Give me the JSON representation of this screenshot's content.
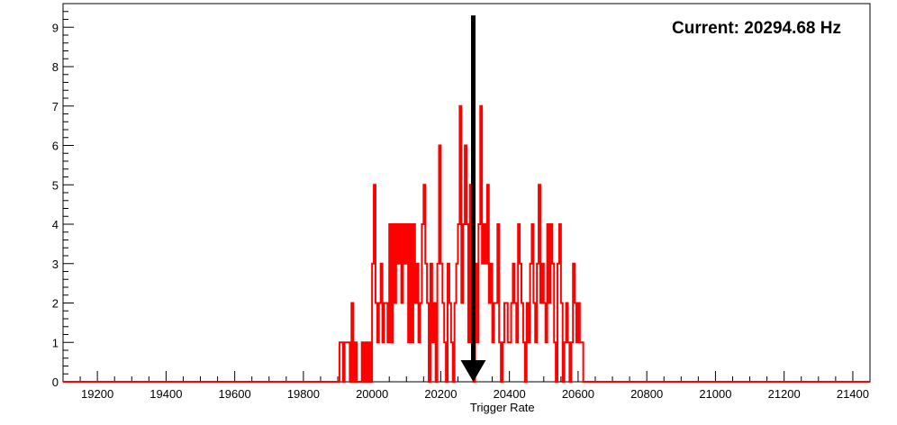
{
  "chart_data": {
    "type": "histogram",
    "title": "",
    "xlabel": "Trigger Rate",
    "ylabel": "",
    "xlim": [
      19100,
      21450
    ],
    "ylim": [
      0,
      9.6
    ],
    "x_ticks": [
      19200,
      19400,
      19600,
      19800,
      20000,
      20200,
      20400,
      20600,
      20800,
      21000,
      21200,
      21400
    ],
    "y_ticks": [
      0,
      1,
      2,
      3,
      4,
      5,
      6,
      7,
      8,
      9
    ],
    "bin_width": 5,
    "series": [
      {
        "color": "#ff0000",
        "bins": [
          [
            19100,
            0
          ],
          [
            19905,
            1
          ],
          [
            19910,
            1
          ],
          [
            19915,
            0
          ],
          [
            19920,
            1
          ],
          [
            19925,
            1
          ],
          [
            19930,
            1
          ],
          [
            19935,
            0
          ],
          [
            19940,
            2
          ],
          [
            19945,
            0
          ],
          [
            19950,
            1
          ],
          [
            19955,
            0
          ],
          [
            19970,
            1
          ],
          [
            19975,
            0
          ],
          [
            19980,
            1
          ],
          [
            19985,
            0
          ],
          [
            19990,
            1
          ],
          [
            19995,
            0
          ],
          [
            20000,
            3
          ],
          [
            20005,
            5
          ],
          [
            20010,
            2
          ],
          [
            20015,
            1
          ],
          [
            20020,
            2
          ],
          [
            20025,
            3
          ],
          [
            20030,
            1
          ],
          [
            20035,
            2
          ],
          [
            20040,
            2
          ],
          [
            20045,
            1
          ],
          [
            20050,
            4
          ],
          [
            20055,
            1
          ],
          [
            20060,
            4
          ],
          [
            20065,
            2
          ],
          [
            20070,
            4
          ],
          [
            20075,
            3
          ],
          [
            20080,
            4
          ],
          [
            20085,
            2
          ],
          [
            20090,
            4
          ],
          [
            20095,
            3
          ],
          [
            20100,
            4
          ],
          [
            20105,
            1
          ],
          [
            20110,
            4
          ],
          [
            20115,
            1
          ],
          [
            20120,
            4
          ],
          [
            20125,
            2
          ],
          [
            20130,
            3
          ],
          [
            20135,
            1
          ],
          [
            20140,
            2
          ],
          [
            20145,
            4
          ],
          [
            20150,
            5
          ],
          [
            20155,
            3
          ],
          [
            20160,
            2
          ],
          [
            20165,
            0
          ],
          [
            20170,
            3
          ],
          [
            20175,
            1
          ],
          [
            20180,
            2
          ],
          [
            20185,
            0
          ],
          [
            20190,
            3
          ],
          [
            20195,
            6
          ],
          [
            20200,
            3
          ],
          [
            20205,
            2
          ],
          [
            20210,
            1
          ],
          [
            20215,
            0
          ],
          [
            20220,
            3
          ],
          [
            20225,
            2
          ],
          [
            20230,
            1
          ],
          [
            20235,
            0
          ],
          [
            20240,
            2
          ],
          [
            20245,
            3
          ],
          [
            20250,
            4
          ],
          [
            20255,
            7
          ],
          [
            20260,
            2
          ],
          [
            20265,
            4
          ],
          [
            20270,
            6
          ],
          [
            20275,
            4
          ],
          [
            20280,
            1
          ],
          [
            20285,
            5
          ],
          [
            20290,
            1
          ],
          [
            20295,
            0
          ],
          [
            20300,
            3
          ],
          [
            20305,
            1
          ],
          [
            20310,
            4
          ],
          [
            20315,
            7
          ],
          [
            20320,
            3
          ],
          [
            20325,
            4
          ],
          [
            20330,
            3
          ],
          [
            20335,
            5
          ],
          [
            20340,
            2
          ],
          [
            20345,
            3
          ],
          [
            20350,
            1
          ],
          [
            20355,
            2
          ],
          [
            20360,
            2
          ],
          [
            20365,
            4
          ],
          [
            20370,
            1
          ],
          [
            20375,
            0
          ],
          [
            20380,
            1
          ],
          [
            20385,
            2
          ],
          [
            20390,
            2
          ],
          [
            20395,
            1
          ],
          [
            20400,
            1
          ],
          [
            20405,
            2
          ],
          [
            20410,
            3
          ],
          [
            20415,
            2
          ],
          [
            20420,
            1
          ],
          [
            20425,
            4
          ],
          [
            20430,
            3
          ],
          [
            20435,
            2
          ],
          [
            20440,
            1
          ],
          [
            20445,
            0
          ],
          [
            20450,
            2
          ],
          [
            20455,
            1
          ],
          [
            20460,
            3
          ],
          [
            20465,
            4
          ],
          [
            20470,
            2
          ],
          [
            20475,
            1
          ],
          [
            20480,
            3
          ],
          [
            20485,
            5
          ],
          [
            20490,
            2
          ],
          [
            20495,
            3
          ],
          [
            20500,
            2
          ],
          [
            20505,
            1
          ],
          [
            20510,
            4
          ],
          [
            20515,
            2
          ],
          [
            20520,
            4
          ],
          [
            20525,
            3
          ],
          [
            20530,
            1
          ],
          [
            20535,
            0
          ],
          [
            20540,
            3
          ],
          [
            20545,
            4
          ],
          [
            20550,
            2
          ],
          [
            20555,
            0
          ],
          [
            20560,
            1
          ],
          [
            20565,
            2
          ],
          [
            20570,
            1
          ],
          [
            20575,
            0
          ],
          [
            20580,
            1
          ],
          [
            20585,
            3
          ],
          [
            20590,
            2
          ],
          [
            20595,
            1
          ],
          [
            20600,
            2
          ],
          [
            20605,
            1
          ],
          [
            20610,
            1
          ],
          [
            20615,
            0
          ]
        ]
      }
    ],
    "marker": {
      "x": 20294.68,
      "color": "#000000",
      "style": "downward-arrow"
    },
    "annotations": [
      {
        "text": "Current: 20294.68 Hz",
        "position": "top-right"
      }
    ],
    "grid": false,
    "legend": "none"
  }
}
